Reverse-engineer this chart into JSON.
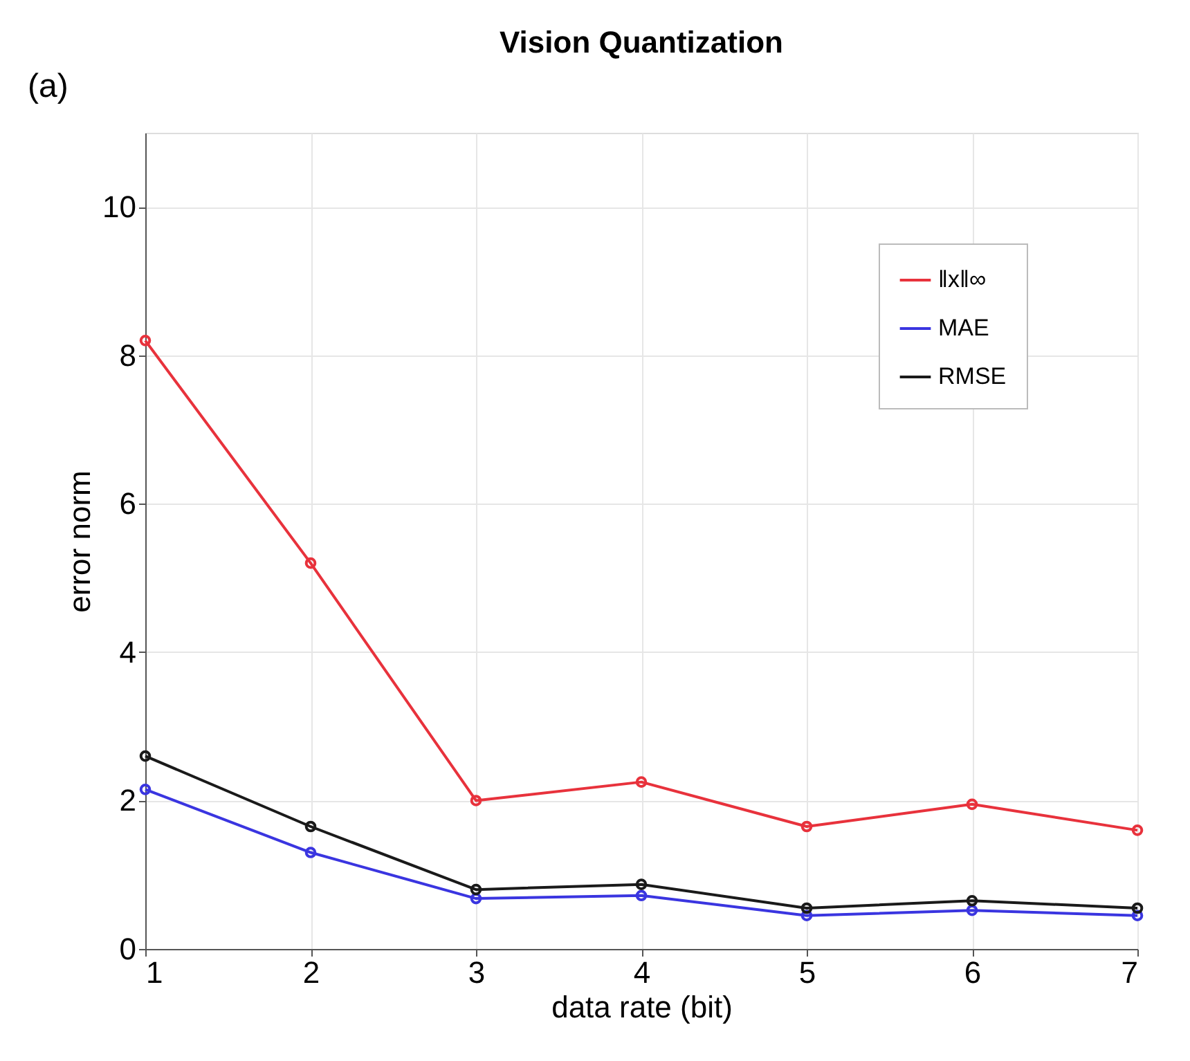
{
  "chart_data": {
    "type": "line",
    "title": "Vision Quantization",
    "xlabel": "data rate (bit)",
    "ylabel": "error norm",
    "annotations": [
      "(a)"
    ],
    "x": [
      1,
      2,
      3,
      4,
      5,
      6,
      7
    ],
    "series": [
      {
        "name": "‖x‖∞",
        "color": "#e8323c",
        "values": [
          8.2,
          5.2,
          2.0,
          2.25,
          1.65,
          1.95,
          1.6
        ]
      },
      {
        "name": "MAE",
        "color": "#3a35e0",
        "values": [
          2.15,
          1.3,
          0.68,
          0.72,
          0.45,
          0.52,
          0.45
        ]
      },
      {
        "name": "RMSE",
        "color": "#1a1a1a",
        "values": [
          2.6,
          1.65,
          0.8,
          0.87,
          0.55,
          0.65,
          0.55
        ]
      }
    ],
    "xlim": [
      1,
      7
    ],
    "xticks": [
      1,
      2,
      3,
      4,
      5,
      6,
      7
    ],
    "ylim": [
      0,
      11
    ],
    "yticks": [
      0,
      2,
      4,
      6,
      8,
      10
    ],
    "grid": true,
    "legend": "top right",
    "marker": "circle",
    "line_style": "solid"
  }
}
